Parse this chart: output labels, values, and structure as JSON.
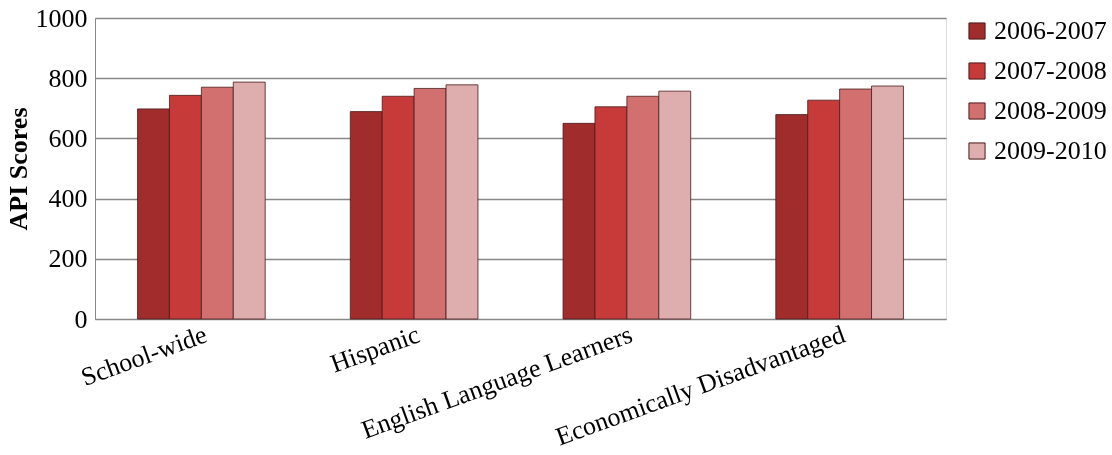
{
  "chart_data": {
    "type": "bar",
    "ylabel": "API Scores",
    "categories": [
      "School-wide",
      "Hispanic",
      "English Language Learners",
      "Economically Disadvantaged"
    ],
    "series": [
      {
        "name": "2006-2007",
        "color": "#a02c2c",
        "values": [
          698,
          689,
          650,
          679
        ]
      },
      {
        "name": "2007-2008",
        "color": "#c63a3a",
        "values": [
          743,
          740,
          705,
          727
        ]
      },
      {
        "name": "2008-2009",
        "color": "#d27070",
        "values": [
          770,
          766,
          740,
          764
        ]
      },
      {
        "name": "2009-2010",
        "color": "#deadad",
        "values": [
          787,
          778,
          757,
          774
        ]
      }
    ],
    "ylim": [
      0,
      1000
    ],
    "yticks": [
      0,
      200,
      400,
      600,
      800,
      1000
    ],
    "grid": "y",
    "legend": "right"
  }
}
